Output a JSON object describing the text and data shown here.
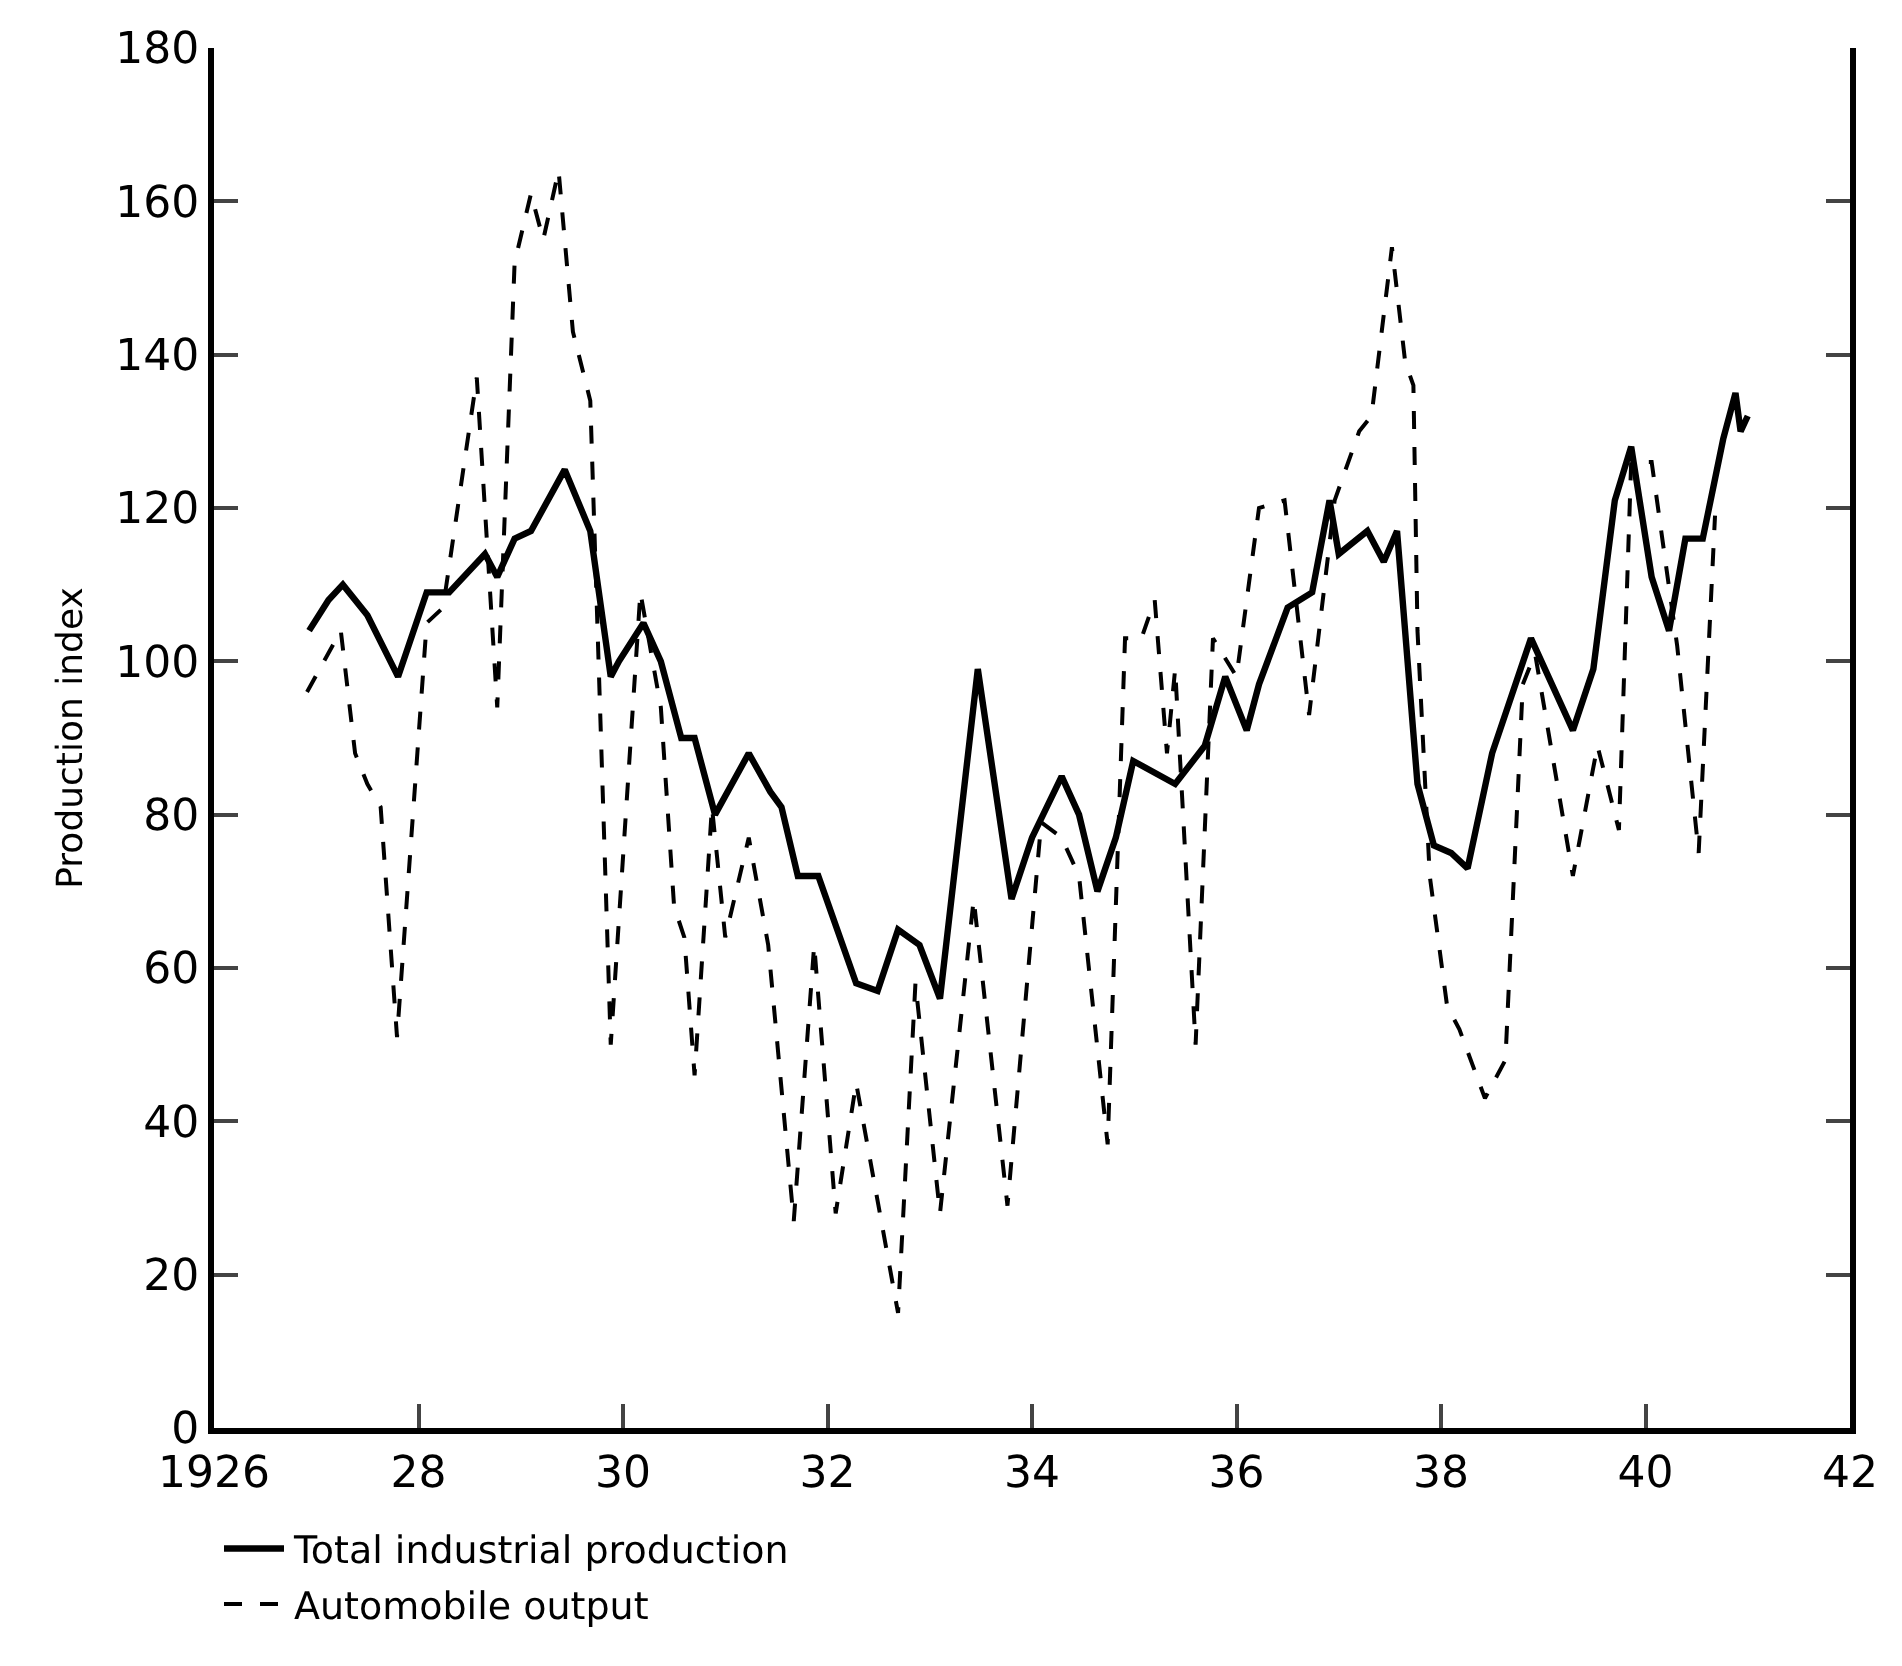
{
  "chart_data": {
    "type": "line",
    "ylabel": "Production index",
    "xlim": [
      1926,
      1942
    ],
    "xticks": [
      {
        "value": 1926,
        "label": "1926"
      },
      {
        "value": 1928,
        "label": "28"
      },
      {
        "value": 1930,
        "label": "30"
      },
      {
        "value": 1932,
        "label": "32"
      },
      {
        "value": 1934,
        "label": "34"
      },
      {
        "value": 1936,
        "label": "36"
      },
      {
        "value": 1938,
        "label": "38"
      },
      {
        "value": 1940,
        "label": "40"
      },
      {
        "value": 1942,
        "label": "42"
      }
    ],
    "ylim": [
      0,
      180
    ],
    "yticks": [
      0,
      20,
      40,
      60,
      80,
      100,
      120,
      140,
      160,
      180
    ],
    "legend": "bottom",
    "marker": "none",
    "series": [
      {
        "name": "Total industrial production",
        "color": "#000000",
        "line_style": "solid",
        "x": [
          1926.93,
          1927.12,
          1927.26,
          1927.5,
          1927.8,
          1928.08,
          1928.3,
          1928.65,
          1928.77,
          1928.94,
          1929.1,
          1929.43,
          1929.68,
          1929.88,
          1929.96,
          1930.2,
          1930.37,
          1930.57,
          1930.7,
          1930.9,
          1931.23,
          1931.44,
          1931.55,
          1931.71,
          1931.91,
          1932.28,
          1932.49,
          1932.69,
          1932.9,
          1933.1,
          1933.47,
          1933.8,
          1934.0,
          1934.29,
          1934.46,
          1934.64,
          1934.82,
          1934.99,
          1935.4,
          1935.69,
          1935.89,
          1936.1,
          1936.22,
          1936.5,
          1936.74,
          1936.91,
          1937.0,
          1937.28,
          1937.44,
          1937.57,
          1937.77,
          1937.93,
          1938.1,
          1938.26,
          1938.5,
          1938.88,
          1939.29,
          1939.49,
          1939.7,
          1939.86,
          1940.06,
          1940.23,
          1940.39,
          1940.56,
          1940.76,
          1940.88,
          1940.93,
          1941.0
        ],
        "values": [
          104,
          108,
          110,
          106,
          98,
          109,
          109,
          114,
          111,
          116,
          117,
          125,
          117,
          98,
          100,
          105,
          100,
          90,
          90,
          80,
          88,
          83,
          81,
          72,
          72,
          58,
          57,
          65,
          63,
          56,
          99,
          69,
          77,
          85,
          80,
          70,
          77,
          87,
          84,
          89,
          98,
          91,
          97,
          107,
          109,
          121,
          114,
          117,
          113,
          117,
          84,
          76,
          75,
          73,
          88,
          103,
          91,
          99,
          121,
          128,
          111,
          104,
          116,
          116,
          129,
          135,
          130,
          132
        ]
      },
      {
        "name": "Automobile output",
        "color": "#000000",
        "line_style": "dashed",
        "x": [
          1926.91,
          1927.24,
          1927.38,
          1927.5,
          1927.63,
          1927.79,
          1928.08,
          1928.24,
          1928.57,
          1928.77,
          1928.94,
          1929.1,
          1929.22,
          1929.37,
          1929.51,
          1929.68,
          1929.88,
          1930.17,
          1930.37,
          1930.5,
          1930.6,
          1930.7,
          1930.87,
          1931.0,
          1931.23,
          1931.42,
          1931.67,
          1931.87,
          1932.08,
          1932.28,
          1932.69,
          1932.86,
          1933.1,
          1933.43,
          1933.76,
          1934.09,
          1934.29,
          1934.46,
          1934.74,
          1934.91,
          1935.07,
          1935.2,
          1935.32,
          1935.4,
          1935.6,
          1935.77,
          1936.0,
          1936.22,
          1936.47,
          1936.71,
          1936.96,
          1937.2,
          1937.32,
          1937.52,
          1937.65,
          1937.73,
          1937.77,
          1937.89,
          1938.06,
          1938.18,
          1938.43,
          1938.63,
          1938.8,
          1938.92,
          1939.29,
          1939.53,
          1939.74,
          1939.86,
          1940.06,
          1940.31,
          1940.52,
          1940.68
        ],
        "values": [
          96,
          104,
          88,
          84,
          81,
          51,
          105,
          107,
          137,
          94,
          152,
          161,
          155,
          164,
          143,
          134,
          50,
          109,
          94,
          68,
          64,
          46,
          81,
          64,
          77,
          63,
          27,
          63,
          28,
          45,
          15,
          58,
          28,
          69,
          29,
          79,
          77,
          72,
          37,
          103,
          103,
          108,
          88,
          99,
          50,
          103,
          98,
          120,
          121,
          93,
          121,
          130,
          132,
          154,
          139,
          136,
          104,
          72,
          55,
          52,
          43,
          48,
          97,
          101,
          72,
          89,
          78,
          126,
          126,
          102,
          75,
          119
        ]
      }
    ]
  }
}
